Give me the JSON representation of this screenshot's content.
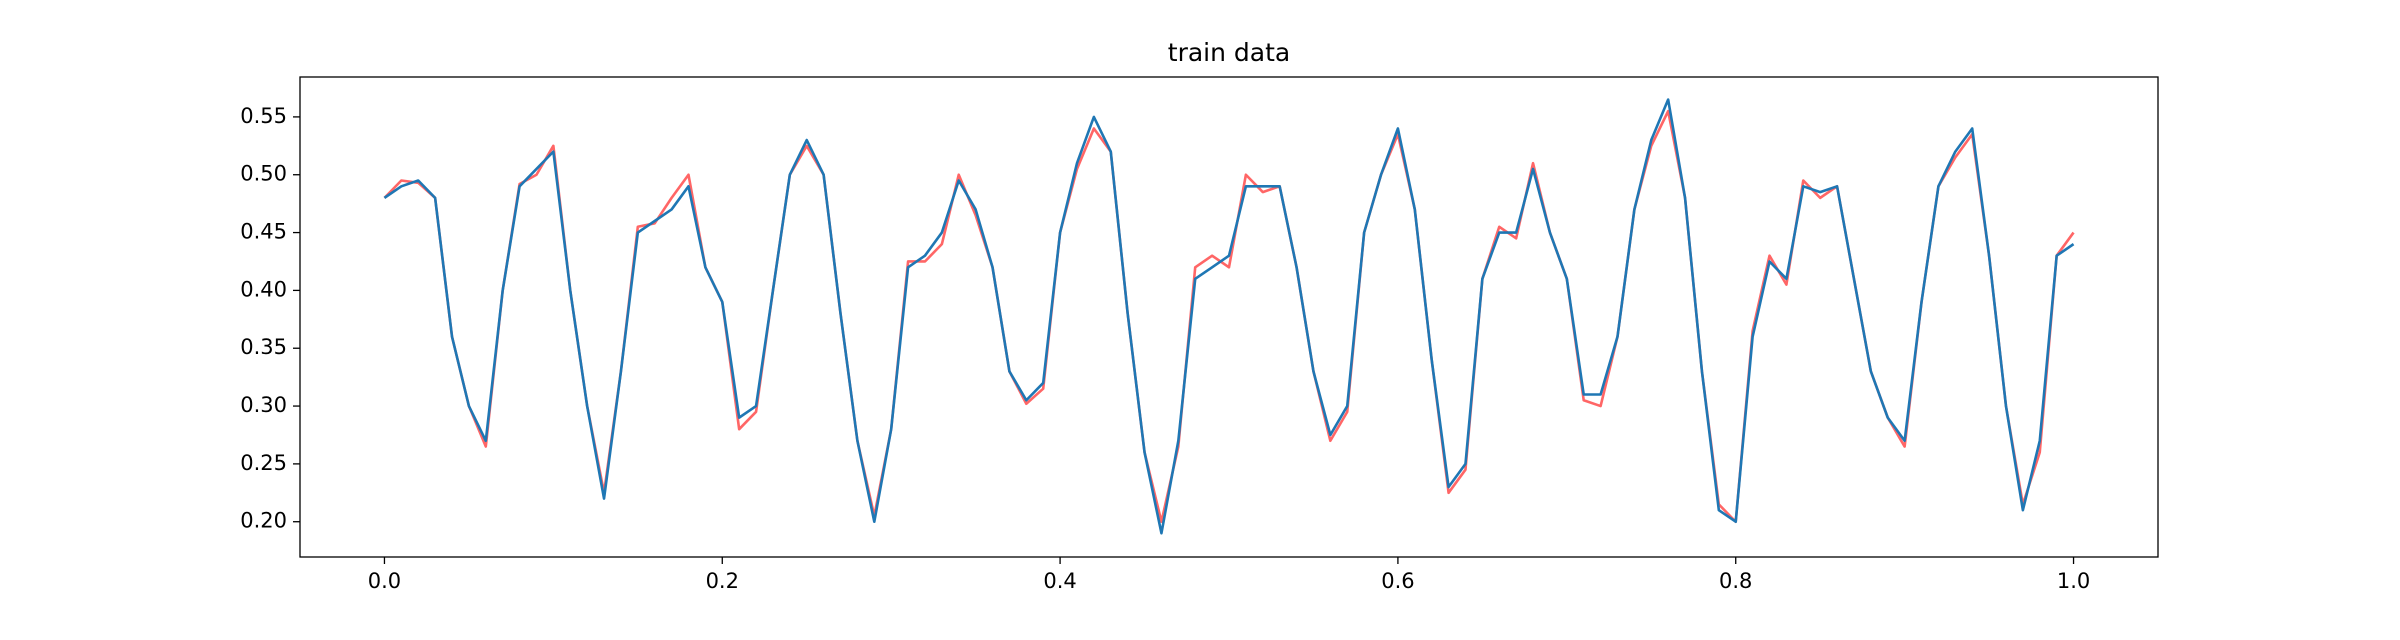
{
  "chart_data": {
    "type": "line",
    "title": "train data",
    "x": [
      0.0,
      0.01,
      0.02,
      0.03,
      0.04,
      0.05,
      0.06,
      0.07,
      0.08,
      0.09,
      0.1,
      0.11,
      0.12,
      0.13,
      0.14,
      0.15,
      0.16,
      0.17,
      0.18,
      0.19,
      0.2,
      0.21,
      0.22,
      0.23,
      0.24,
      0.25,
      0.26,
      0.27,
      0.28,
      0.29,
      0.3,
      0.31,
      0.32,
      0.33,
      0.34,
      0.35,
      0.36,
      0.37,
      0.38,
      0.39,
      0.4,
      0.41,
      0.42,
      0.43,
      0.44,
      0.45,
      0.46,
      0.47,
      0.48,
      0.49,
      0.5,
      0.51,
      0.52,
      0.53,
      0.54,
      0.55,
      0.56,
      0.57,
      0.58,
      0.59,
      0.6,
      0.61,
      0.62,
      0.63,
      0.64,
      0.65,
      0.66,
      0.67,
      0.68,
      0.69,
      0.7,
      0.71,
      0.72,
      0.73,
      0.74,
      0.75,
      0.76,
      0.77,
      0.78,
      0.79,
      0.8,
      0.81,
      0.82,
      0.83,
      0.84,
      0.85,
      0.86,
      0.87,
      0.88,
      0.89,
      0.9,
      0.91,
      0.92,
      0.93,
      0.94,
      0.95,
      0.96,
      0.97,
      0.98,
      0.99,
      1.0
    ],
    "series": [
      {
        "color": "#ff5555",
        "values": [
          0.48,
          0.495,
          0.493,
          0.48,
          0.36,
          0.3,
          0.265,
          0.4,
          0.492,
          0.5,
          0.525,
          0.4,
          0.3,
          0.225,
          0.33,
          0.455,
          0.458,
          0.48,
          0.5,
          0.42,
          0.39,
          0.28,
          0.295,
          0.4,
          0.5,
          0.525,
          0.5,
          0.38,
          0.27,
          0.205,
          0.28,
          0.425,
          0.425,
          0.44,
          0.5,
          0.465,
          0.42,
          0.33,
          0.302,
          0.315,
          0.45,
          0.505,
          0.54,
          0.52,
          0.38,
          0.26,
          0.2,
          0.265,
          0.42,
          0.43,
          0.42,
          0.5,
          0.485,
          0.49,
          0.42,
          0.33,
          0.27,
          0.295,
          0.45,
          0.5,
          0.535,
          0.47,
          0.34,
          0.225,
          0.245,
          0.41,
          0.455,
          0.445,
          0.51,
          0.45,
          0.41,
          0.305,
          0.3,
          0.36,
          0.47,
          0.525,
          0.555,
          0.48,
          0.33,
          0.215,
          0.2,
          0.365,
          0.43,
          0.405,
          0.495,
          0.48,
          0.49,
          0.41,
          0.33,
          0.29,
          0.265,
          0.39,
          0.49,
          0.515,
          0.535,
          0.43,
          0.3,
          0.215,
          0.26,
          0.43,
          0.45
        ]
      },
      {
        "color": "#1f77b4",
        "values": [
          0.48,
          0.49,
          0.495,
          0.48,
          0.36,
          0.3,
          0.27,
          0.4,
          0.49,
          0.505,
          0.52,
          0.4,
          0.3,
          0.22,
          0.33,
          0.45,
          0.46,
          0.47,
          0.49,
          0.42,
          0.39,
          0.29,
          0.3,
          0.4,
          0.5,
          0.53,
          0.5,
          0.38,
          0.27,
          0.2,
          0.28,
          0.42,
          0.43,
          0.45,
          0.495,
          0.47,
          0.42,
          0.33,
          0.305,
          0.32,
          0.45,
          0.51,
          0.55,
          0.52,
          0.38,
          0.26,
          0.19,
          0.27,
          0.41,
          0.42,
          0.43,
          0.49,
          0.49,
          0.49,
          0.42,
          0.33,
          0.275,
          0.3,
          0.45,
          0.5,
          0.54,
          0.47,
          0.34,
          0.23,
          0.25,
          0.41,
          0.45,
          0.45,
          0.505,
          0.45,
          0.41,
          0.31,
          0.31,
          0.36,
          0.47,
          0.53,
          0.565,
          0.48,
          0.33,
          0.21,
          0.2,
          0.36,
          0.425,
          0.41,
          0.49,
          0.485,
          0.49,
          0.41,
          0.33,
          0.29,
          0.27,
          0.39,
          0.49,
          0.52,
          0.54,
          0.43,
          0.3,
          0.21,
          0.27,
          0.43,
          0.44
        ]
      }
    ],
    "xlim": [
      -0.05,
      1.05
    ],
    "xticks": [
      {
        "value": 0,
        "label": "0.0"
      },
      0.2,
      0.4,
      0.6,
      0.8,
      {
        "value": 1,
        "label": "1.0"
      }
    ],
    "ylim": [
      0.1695,
      0.5845
    ],
    "yticks": [
      {
        "value": 0.2,
        "label": "0.20"
      },
      0.25,
      {
        "value": 0.3,
        "label": "0.30"
      },
      0.35,
      {
        "value": 0.4,
        "label": "0.40"
      },
      0.45,
      {
        "value": 0.5,
        "label": "0.50"
      },
      0.55
    ],
    "grid": false
  }
}
